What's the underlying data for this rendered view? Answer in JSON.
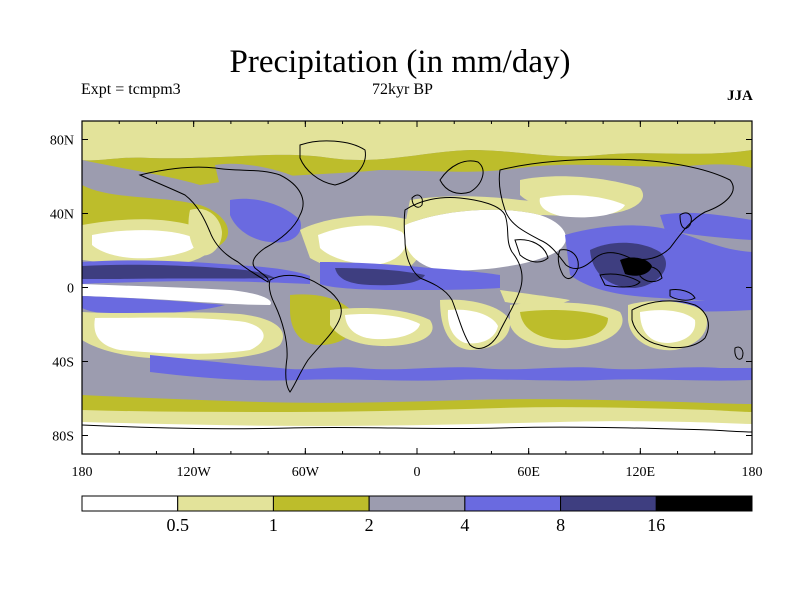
{
  "header": {
    "title": "Precipitation (in mm/day)",
    "experiment": "Expt = tcmpm3",
    "period": "72kyr BP",
    "season": "JJA"
  },
  "map": {
    "lat_labels": [
      "80N",
      "40N",
      "0",
      "40S",
      "80S"
    ],
    "lat_values": [
      80,
      40,
      0,
      -40,
      -80
    ],
    "lon_labels": [
      "180",
      "120W",
      "60W",
      "0",
      "60E",
      "120E",
      "180"
    ],
    "lon_values": [
      -180,
      -120,
      -60,
      0,
      60,
      120,
      180
    ],
    "lon_range": [
      -180,
      180
    ],
    "lat_range": [
      -90,
      90
    ]
  },
  "legend": {
    "thresholds": [
      "0.5",
      "1",
      "2",
      "4",
      "8",
      "16"
    ],
    "colors": [
      "#ffffff",
      "#e3e39a",
      "#bdbd2b",
      "#9c9caf",
      "#6a6ae0",
      "#3e3e80",
      "#000000"
    ]
  }
}
